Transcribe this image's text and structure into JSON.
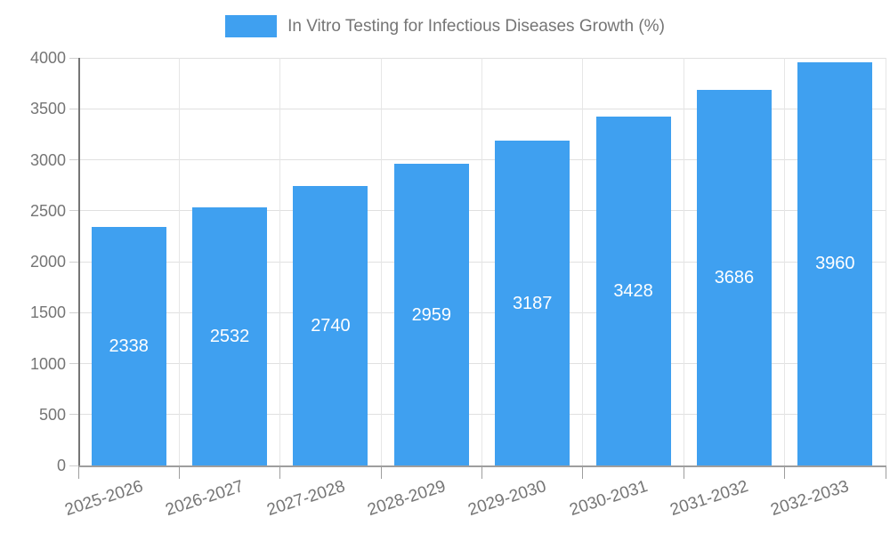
{
  "legend": {
    "label": "In Vitro Testing for Infectious Diseases Growth (%)"
  },
  "chart_data": {
    "type": "bar",
    "title": "In Vitro Testing for Infectious Diseases Growth (%)",
    "categories": [
      "2025-2026",
      "2026-2027",
      "2027-2028",
      "2028-2029",
      "2029-2030",
      "2030-2031",
      "2031-2032",
      "2032-2033"
    ],
    "values": [
      2338,
      2532,
      2740,
      2959,
      3187,
      3428,
      3686,
      3960
    ],
    "value_labels": [
      "2338",
      "2532",
      "2740",
      "2959",
      "3187",
      "3428",
      "3686",
      "3960"
    ],
    "xlabel": "",
    "ylabel": "",
    "ylim": [
      0,
      4000
    ],
    "yticks": [
      0,
      500,
      1000,
      1500,
      2000,
      2500,
      3000,
      3500,
      4000
    ],
    "grid": true,
    "legend_position": "top",
    "colors": {
      "bar": "#3FA0F0",
      "gridline": "#E0E0E0",
      "axis_line": "#9E9E9E",
      "axis_line_left": "#757575",
      "tick": "#CFCFCF",
      "text": "#757575",
      "value_text": "#FFFFFF",
      "background": "#FFFFFF"
    }
  }
}
